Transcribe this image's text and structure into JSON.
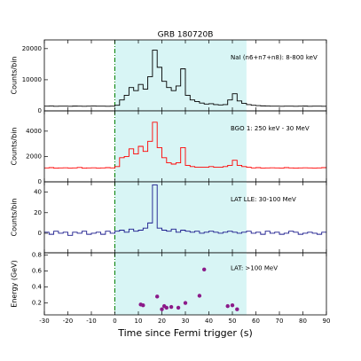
{
  "chart_data": [
    {
      "type": "line",
      "title": "GRB 180720B",
      "ylabel": "Counts/bin",
      "label": "NaI (n6+n7+n8): 8-800 keV",
      "color": "#000000",
      "shaded_interval": [
        0,
        56
      ],
      "trigger_line": 0,
      "xlim": [
        -30,
        90
      ],
      "xticks": [
        -30,
        -20,
        -10,
        0,
        10,
        20,
        30,
        40,
        50,
        60,
        70,
        80,
        90
      ],
      "ylim": [
        0,
        22800
      ],
      "yticks": [
        0,
        10000,
        20000
      ],
      "x": [
        -30,
        -28,
        -26,
        -24,
        -22,
        -20,
        -18,
        -16,
        -14,
        -12,
        -10,
        -8,
        -6,
        -4,
        -2,
        0,
        2,
        4,
        6,
        8,
        10,
        12,
        14,
        16,
        18,
        20,
        22,
        24,
        26,
        28,
        30,
        32,
        34,
        36,
        38,
        40,
        42,
        44,
        46,
        48,
        50,
        52,
        54,
        56,
        58,
        60,
        62,
        64,
        66,
        68,
        70,
        72,
        74,
        76,
        78,
        80,
        82,
        84,
        86,
        88
      ],
      "values": [
        1500,
        1550,
        1480,
        1520,
        1500,
        1490,
        1530,
        1510,
        1470,
        1500,
        1540,
        1500,
        1520,
        1480,
        1510,
        1800,
        3500,
        5000,
        7500,
        6500,
        8500,
        7000,
        11000,
        19500,
        14000,
        9500,
        7500,
        6500,
        8000,
        13500,
        5000,
        3500,
        3000,
        2500,
        2200,
        2300,
        2000,
        1900,
        2000,
        3500,
        5500,
        3200,
        2400,
        2000,
        1800,
        1700,
        1600,
        1550,
        1500,
        1520,
        1480,
        1500,
        1510,
        1490,
        1500,
        1530,
        1480,
        1500,
        1510,
        1490
      ]
    },
    {
      "type": "line",
      "ylabel": "Counts/bin",
      "label": "BGO 1: 250 keV - 30 MeV",
      "color": "#ff0000",
      "shaded_interval": [
        0,
        56
      ],
      "trigger_line": 0,
      "xlim": [
        -30,
        90
      ],
      "xticks": [
        -30,
        -20,
        -10,
        0,
        10,
        20,
        30,
        40,
        50,
        60,
        70,
        80,
        90
      ],
      "ylim": [
        0,
        5600
      ],
      "yticks": [
        0,
        2000,
        4000
      ],
      "x": [
        -30,
        -28,
        -26,
        -24,
        -22,
        -20,
        -18,
        -16,
        -14,
        -12,
        -10,
        -8,
        -6,
        -4,
        -2,
        0,
        2,
        4,
        6,
        8,
        10,
        12,
        14,
        16,
        18,
        20,
        22,
        24,
        26,
        28,
        30,
        32,
        34,
        36,
        38,
        40,
        42,
        44,
        46,
        48,
        50,
        52,
        54,
        56,
        58,
        60,
        62,
        64,
        66,
        68,
        70,
        72,
        74,
        76,
        78,
        80,
        82,
        84,
        86,
        88
      ],
      "values": [
        1100,
        1120,
        1080,
        1100,
        1110,
        1090,
        1100,
        1130,
        1080,
        1100,
        1110,
        1090,
        1100,
        1120,
        1100,
        1200,
        1900,
        2000,
        2600,
        2200,
        2800,
        2400,
        3200,
        4700,
        2700,
        1900,
        1500,
        1400,
        1500,
        2700,
        1300,
        1200,
        1150,
        1150,
        1150,
        1200,
        1150,
        1150,
        1200,
        1300,
        1700,
        1300,
        1200,
        1150,
        1100,
        1120,
        1090,
        1100,
        1110,
        1100,
        1090,
        1120,
        1100,
        1080,
        1100,
        1110,
        1100,
        1090,
        1100,
        1120
      ]
    },
    {
      "type": "line",
      "ylabel": "Counts/bin",
      "label": "LAT LLE: 30-100 MeV",
      "color": "#1a1a8c",
      "shaded_interval": [
        0,
        56
      ],
      "trigger_line": 0,
      "xlim": [
        -30,
        90
      ],
      "xticks": [
        -30,
        -20,
        -10,
        0,
        10,
        20,
        30,
        40,
        50,
        60,
        70,
        80,
        90
      ],
      "ylim": [
        -19,
        50
      ],
      "yticks": [
        0,
        20,
        40
      ],
      "x": [
        -30,
        -28,
        -26,
        -24,
        -22,
        -20,
        -18,
        -16,
        -14,
        -12,
        -10,
        -8,
        -6,
        -4,
        -2,
        0,
        2,
        4,
        6,
        8,
        10,
        12,
        14,
        16,
        18,
        20,
        22,
        24,
        26,
        28,
        30,
        32,
        34,
        36,
        38,
        40,
        42,
        44,
        46,
        48,
        50,
        52,
        54,
        56,
        58,
        60,
        62,
        64,
        66,
        68,
        70,
        72,
        74,
        76,
        78,
        80,
        82,
        84,
        86,
        88
      ],
      "values": [
        1,
        -1,
        2,
        0,
        1,
        -2,
        1,
        0,
        2,
        -1,
        0,
        1,
        -1,
        2,
        0,
        2,
        3,
        1,
        4,
        2,
        3,
        5,
        10,
        47,
        5,
        3,
        2,
        4,
        1,
        3,
        2,
        1,
        2,
        0,
        1,
        2,
        1,
        0,
        1,
        2,
        1,
        0,
        1,
        2,
        0,
        1,
        -1,
        2,
        0,
        1,
        -1,
        0,
        2,
        1,
        -1,
        0,
        1,
        0,
        -1,
        1
      ]
    },
    {
      "type": "scatter",
      "ylabel": "Energy (GeV)",
      "xlabel": "Time since Fermi trigger (s)",
      "label": "LAT: >100 MeV",
      "color": "#8b1a89",
      "shaded_interval": [
        0,
        56
      ],
      "trigger_line": 0,
      "xlim": [
        -30,
        90
      ],
      "xticks": [
        -30,
        -20,
        -10,
        0,
        10,
        20,
        30,
        40,
        50,
        60,
        70,
        80,
        90
      ],
      "ylim": [
        0.05,
        0.83
      ],
      "yticks": [
        0.2,
        0.4,
        0.6,
        0.8
      ],
      "x": [
        11,
        12,
        18,
        20,
        21,
        22,
        24,
        27,
        30,
        36,
        38,
        48,
        50,
        52
      ],
      "values": [
        0.18,
        0.17,
        0.28,
        0.12,
        0.16,
        0.14,
        0.15,
        0.14,
        0.2,
        0.29,
        0.62,
        0.16,
        0.17,
        0.12
      ]
    }
  ]
}
